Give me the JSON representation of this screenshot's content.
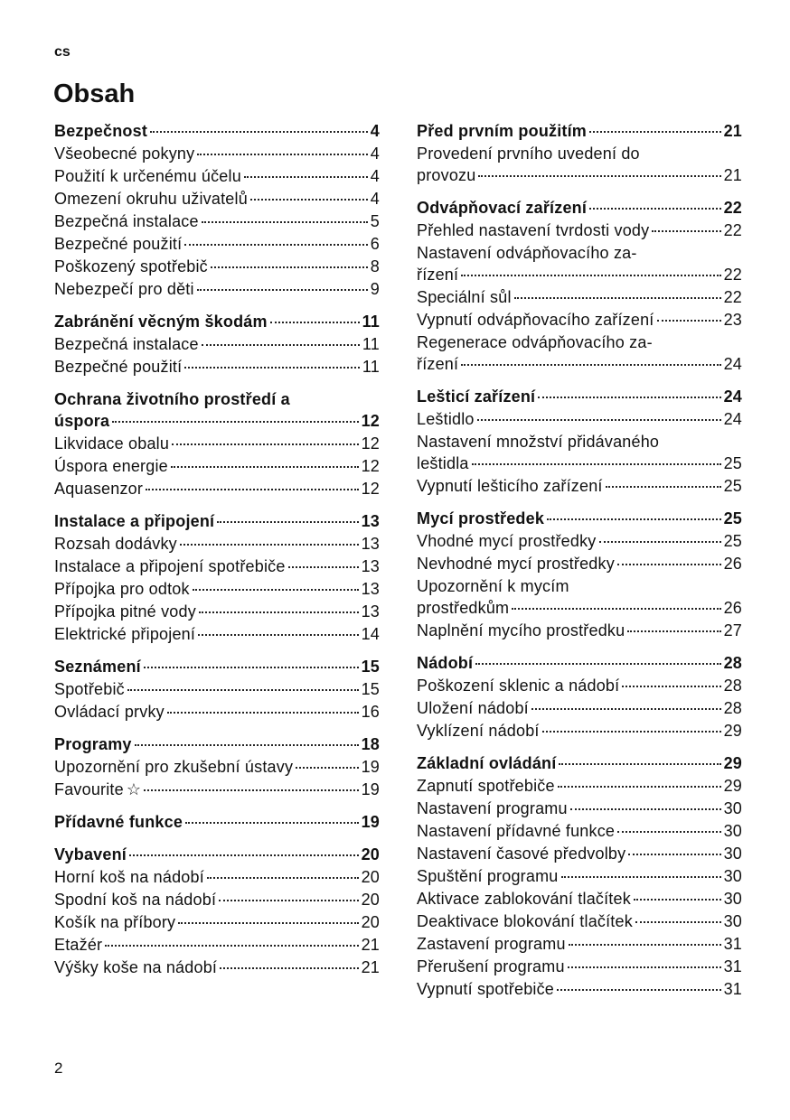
{
  "header": {
    "lang": "cs",
    "title": "Obsah"
  },
  "footer": {
    "page": "2"
  },
  "columns": [
    [
      {
        "heading": {
          "text": "Bezpečnost",
          "page": "4"
        },
        "items": [
          {
            "text": "Všeobecné pokyny",
            "page": "4"
          },
          {
            "text": "Použití k určenému účelu",
            "page": "4"
          },
          {
            "text": "Omezení okruhu uživatelů",
            "page": "4"
          },
          {
            "text": "Bezpečná instalace",
            "page": "5"
          },
          {
            "text": "Bezpečné použití",
            "page": "6"
          },
          {
            "text": "Poškozený spotřebič",
            "page": "8"
          },
          {
            "text": "Nebezpečí pro děti",
            "page": "9"
          }
        ]
      },
      {
        "heading": {
          "text": "Zabránění věcným škodám",
          "page": "11"
        },
        "items": [
          {
            "text": "Bezpečná instalace",
            "page": "11"
          },
          {
            "text": "Bezpečné použití",
            "page": "11"
          }
        ]
      },
      {
        "heading": {
          "pre": "Ochrana životního prostředí a",
          "text": "úspora",
          "page": "12"
        },
        "items": [
          {
            "text": "Likvidace obalu",
            "page": "12"
          },
          {
            "text": "Úspora energie",
            "page": "12"
          },
          {
            "text": "Aquasenzor",
            "page": "12"
          }
        ]
      },
      {
        "heading": {
          "text": "Instalace a připojení",
          "page": "13"
        },
        "items": [
          {
            "text": "Rozsah dodávky",
            "page": "13"
          },
          {
            "text": "Instalace a připojení spotřebiče",
            "page": "13"
          },
          {
            "text": "Přípojka pro odtok",
            "page": "13"
          },
          {
            "text": "Přípojka pitné vody",
            "page": "13"
          },
          {
            "text": "Elektrické připojení",
            "page": "14"
          }
        ]
      },
      {
        "heading": {
          "text": "Seznámení",
          "page": "15"
        },
        "items": [
          {
            "text": "Spotřebič",
            "page": "15"
          },
          {
            "text": "Ovládací prvky",
            "page": "16"
          }
        ]
      },
      {
        "heading": {
          "text": "Programy",
          "page": "18"
        },
        "items": [
          {
            "text": "Upozornění pro zkušební ústavy",
            "page": "19"
          },
          {
            "text": "Favourite",
            "page": "19",
            "icon": "star-icon"
          }
        ]
      },
      {
        "heading": {
          "text": "Přídavné funkce",
          "page": "19"
        },
        "items": []
      },
      {
        "heading": {
          "text": "Vybavení",
          "page": "20"
        },
        "items": [
          {
            "text": "Horní koš na nádobí",
            "page": "20"
          },
          {
            "text": "Spodní koš na nádobí",
            "page": "20"
          },
          {
            "text": "Košík na příbory",
            "page": "20"
          },
          {
            "text": "Etažér",
            "page": "21"
          },
          {
            "text": "Výšky koše na nádobí",
            "page": "21"
          }
        ]
      }
    ],
    [
      {
        "heading": {
          "text": "Před prvním použitím",
          "page": "21"
        },
        "items": [
          {
            "pre": "Provedení prvního uvedení do",
            "text": "provozu",
            "page": "21"
          }
        ]
      },
      {
        "heading": {
          "text": "Odvápňovací zařízení",
          "page": "22"
        },
        "items": [
          {
            "text": "Přehled nastavení tvrdosti vody",
            "page": "22"
          },
          {
            "pre": "Nastavení odvápňovacího za-",
            "text": "řízení",
            "page": "22"
          },
          {
            "text": "Speciální sůl",
            "page": "22"
          },
          {
            "text": "Vypnutí odvápňovacího zařízení",
            "page": "23"
          },
          {
            "pre": "Regenerace odvápňovacího za-",
            "text": "řízení",
            "page": "24"
          }
        ]
      },
      {
        "heading": {
          "text": "Lešticí zařízení",
          "page": "24"
        },
        "items": [
          {
            "text": "Leštidlo",
            "page": "24"
          },
          {
            "pre": "Nastavení množství přidávaného",
            "text": "leštidla",
            "page": "25"
          },
          {
            "text": "Vypnutí lešticího zařízení",
            "page": "25"
          }
        ]
      },
      {
        "heading": {
          "text": "Mycí prostředek",
          "page": "25"
        },
        "items": [
          {
            "text": "Vhodné mycí prostředky",
            "page": "25"
          },
          {
            "text": "Nevhodné mycí prostředky",
            "page": "26"
          },
          {
            "pre": "Upozornění k mycím",
            "text": "prostředkům",
            "page": "26"
          },
          {
            "text": "Naplnění mycího prostředku",
            "page": "27"
          }
        ]
      },
      {
        "heading": {
          "text": "Nádobí",
          "page": "28"
        },
        "items": [
          {
            "text": "Poškození sklenic a nádobí",
            "page": "28"
          },
          {
            "text": "Uložení nádobí",
            "page": "28"
          },
          {
            "text": "Vyklízení nádobí",
            "page": "29"
          }
        ]
      },
      {
        "heading": {
          "text": "Základní ovládání",
          "page": "29"
        },
        "items": [
          {
            "text": "Zapnutí spotřebiče",
            "page": "29"
          },
          {
            "text": "Nastavení programu",
            "page": "30"
          },
          {
            "text": "Nastavení přídavné funkce",
            "page": "30"
          },
          {
            "text": "Nastavení časové předvolby",
            "page": "30"
          },
          {
            "text": "Spuštění programu",
            "page": "30"
          },
          {
            "text": "Aktivace zablokování tlačítek",
            "page": "30"
          },
          {
            "text": "Deaktivace blokování tlačítek",
            "page": "30"
          },
          {
            "text": "Zastavení programu",
            "page": "31"
          },
          {
            "text": "Přerušení programu",
            "page": "31"
          },
          {
            "text": "Vypnutí spotřebiče",
            "page": "31"
          }
        ]
      }
    ]
  ]
}
